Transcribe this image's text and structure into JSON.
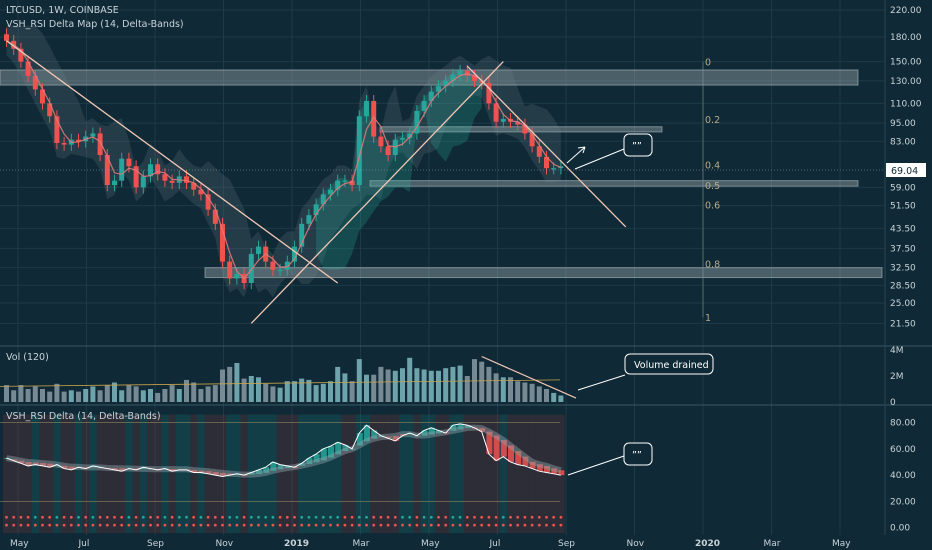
{
  "header": {
    "symbol": "LTCUSD, 1W, COINBASE",
    "indicator": "VSH_RSI Delta Map (14, Delta-Bands)"
  },
  "volume_panel": {
    "title": "Vol (120)"
  },
  "rsi_panel": {
    "title": "VSH_RSI Delta (14, Delta-Bands)"
  },
  "annotations": {
    "volume_note": "Volume drained",
    "quote_mark": "””"
  },
  "colors": {
    "background": "#0f2a36",
    "up": "#26a69a",
    "down": "#ef5350",
    "zone": "#c8d0d4",
    "trendline": "#f2c6b5",
    "cloud": "#2fbfa8",
    "grid": "#1c3a47"
  },
  "chart_data": [
    {
      "type": "candlestick",
      "title": "LTCUSD, 1W, COINBASE",
      "scale": "log",
      "ylim": [
        19,
        220
      ],
      "last_price": "69.04",
      "y_tick_labels": [
        "220.00",
        "180.00",
        "150.00",
        "130.00",
        "110.00",
        "95.00",
        "83.00",
        "69.04",
        "59.00",
        "51.50",
        "43.50",
        "37.50",
        "32.50",
        "28.50",
        "25.00",
        "21.50"
      ],
      "y_ticks": [
        220,
        180,
        150,
        130,
        110,
        95,
        83,
        59,
        51.5,
        43.5,
        37.5,
        32.5,
        28.5,
        25,
        21.5
      ],
      "x_tick_labels": [
        "May",
        "Jul",
        "Sep",
        "Nov",
        "2019",
        "Mar",
        "May",
        "Jul",
        "Sep",
        "Nov",
        "2020",
        "Mar",
        "May"
      ],
      "fib_levels": [
        {
          "label": "0",
          "value": 150
        },
        {
          "label": "0.2",
          "value": 98
        },
        {
          "label": "0.4",
          "value": 70
        },
        {
          "label": "0.5",
          "value": 60
        },
        {
          "label": "0.6",
          "value": 52
        },
        {
          "label": "0.8",
          "value": 33.5
        },
        {
          "label": "1",
          "value": 22.5
        }
      ],
      "zones": [
        {
          "low": 126,
          "high": 141
        },
        {
          "low": 89,
          "high": 92.5
        },
        {
          "low": 59.5,
          "high": 62
        },
        {
          "low": 30.2,
          "high": 32.5
        }
      ],
      "closes": [
        175,
        165,
        150,
        135,
        122,
        110,
        100,
        82,
        81,
        84,
        83,
        86,
        88,
        75,
        60,
        62,
        73,
        69,
        59,
        64,
        70,
        65,
        62,
        61,
        64,
        61,
        58,
        56,
        50,
        45,
        34,
        30,
        31,
        29,
        36,
        38,
        34,
        32,
        32,
        34,
        38,
        45,
        48,
        52,
        56,
        58,
        62,
        62,
        60,
        100,
        112,
        86,
        80,
        75,
        84,
        85,
        88,
        104,
        112,
        120,
        125,
        130,
        136,
        140,
        135,
        130,
        128,
        110,
        96,
        98,
        96,
        94,
        88,
        80,
        74,
        68,
        68,
        69
      ]
    },
    {
      "type": "bar",
      "title": "Vol (120)",
      "y_tick_labels": [
        "4M",
        "2M",
        "0"
      ],
      "ylim": [
        0,
        4
      ],
      "unit": "M",
      "values": [
        1.3,
        0.9,
        1.3,
        1.0,
        1.2,
        1.0,
        0.8,
        1.4,
        0.8,
        0.9,
        0.8,
        1.0,
        1.2,
        0.9,
        1.3,
        1.5,
        0.9,
        1.3,
        1.2,
        0.9,
        1.0,
        0.7,
        1.0,
        1.3,
        1.0,
        1.7,
        1.5,
        1.0,
        1.2,
        1.3,
        2.5,
        2.7,
        3.0,
        1.8,
        2.0,
        1.9,
        1.4,
        1.2,
        1.1,
        1.6,
        1.6,
        1.8,
        1.7,
        1.3,
        1.4,
        1.6,
        2.7,
        2.2,
        1.6,
        3.3,
        2.1,
        2.1,
        2.7,
        2.5,
        2.4,
        2.6,
        3.4,
        2.6,
        2.5,
        2.4,
        2.4,
        2.6,
        2.7,
        2.8,
        2.0,
        3.3,
        3.1,
        2.7,
        2.2,
        1.9,
        1.9,
        1.6,
        1.5,
        1.4,
        1.2,
        1.0,
        0.7,
        0.5
      ]
    },
    {
      "type": "line",
      "title": "VSH_RSI Delta (14, Delta-Bands)",
      "y_tick_labels": [
        "80.00",
        "60.00",
        "40.00",
        "20.00",
        "0.00"
      ],
      "y_ticks": [
        80,
        60,
        40,
        20,
        0
      ],
      "ylim": [
        -4,
        88
      ],
      "bands": [
        80,
        20
      ],
      "values": [
        53,
        51,
        49,
        47,
        48,
        47,
        46,
        48,
        45,
        44,
        46,
        45,
        47,
        46,
        45,
        44,
        43,
        45,
        44,
        46,
        45,
        44,
        45,
        43,
        44,
        44,
        42,
        42,
        41,
        40,
        39,
        40,
        41,
        40,
        42,
        44,
        46,
        50,
        48,
        47,
        46,
        49,
        53,
        56,
        60,
        62,
        65,
        63,
        60,
        72,
        78,
        74,
        70,
        68,
        66,
        70,
        72,
        70,
        74,
        76,
        74,
        72,
        78,
        79,
        78,
        76,
        73,
        56,
        51,
        54,
        50,
        48,
        47,
        45,
        43,
        42,
        41,
        40
      ]
    }
  ]
}
